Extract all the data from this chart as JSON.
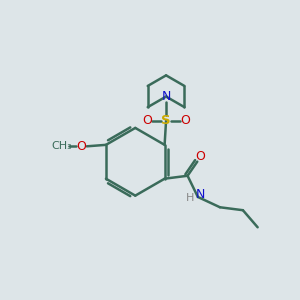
{
  "background_color": "#dde5e8",
  "bond_color": "#3a6b5a",
  "bond_width": 1.8,
  "atom_colors": {
    "N": "#1010cc",
    "O": "#cc0000",
    "S": "#ccaa00",
    "C": "#3a6b5a",
    "H": "#888888"
  },
  "figsize": [
    3.0,
    3.0
  ],
  "dpi": 100
}
